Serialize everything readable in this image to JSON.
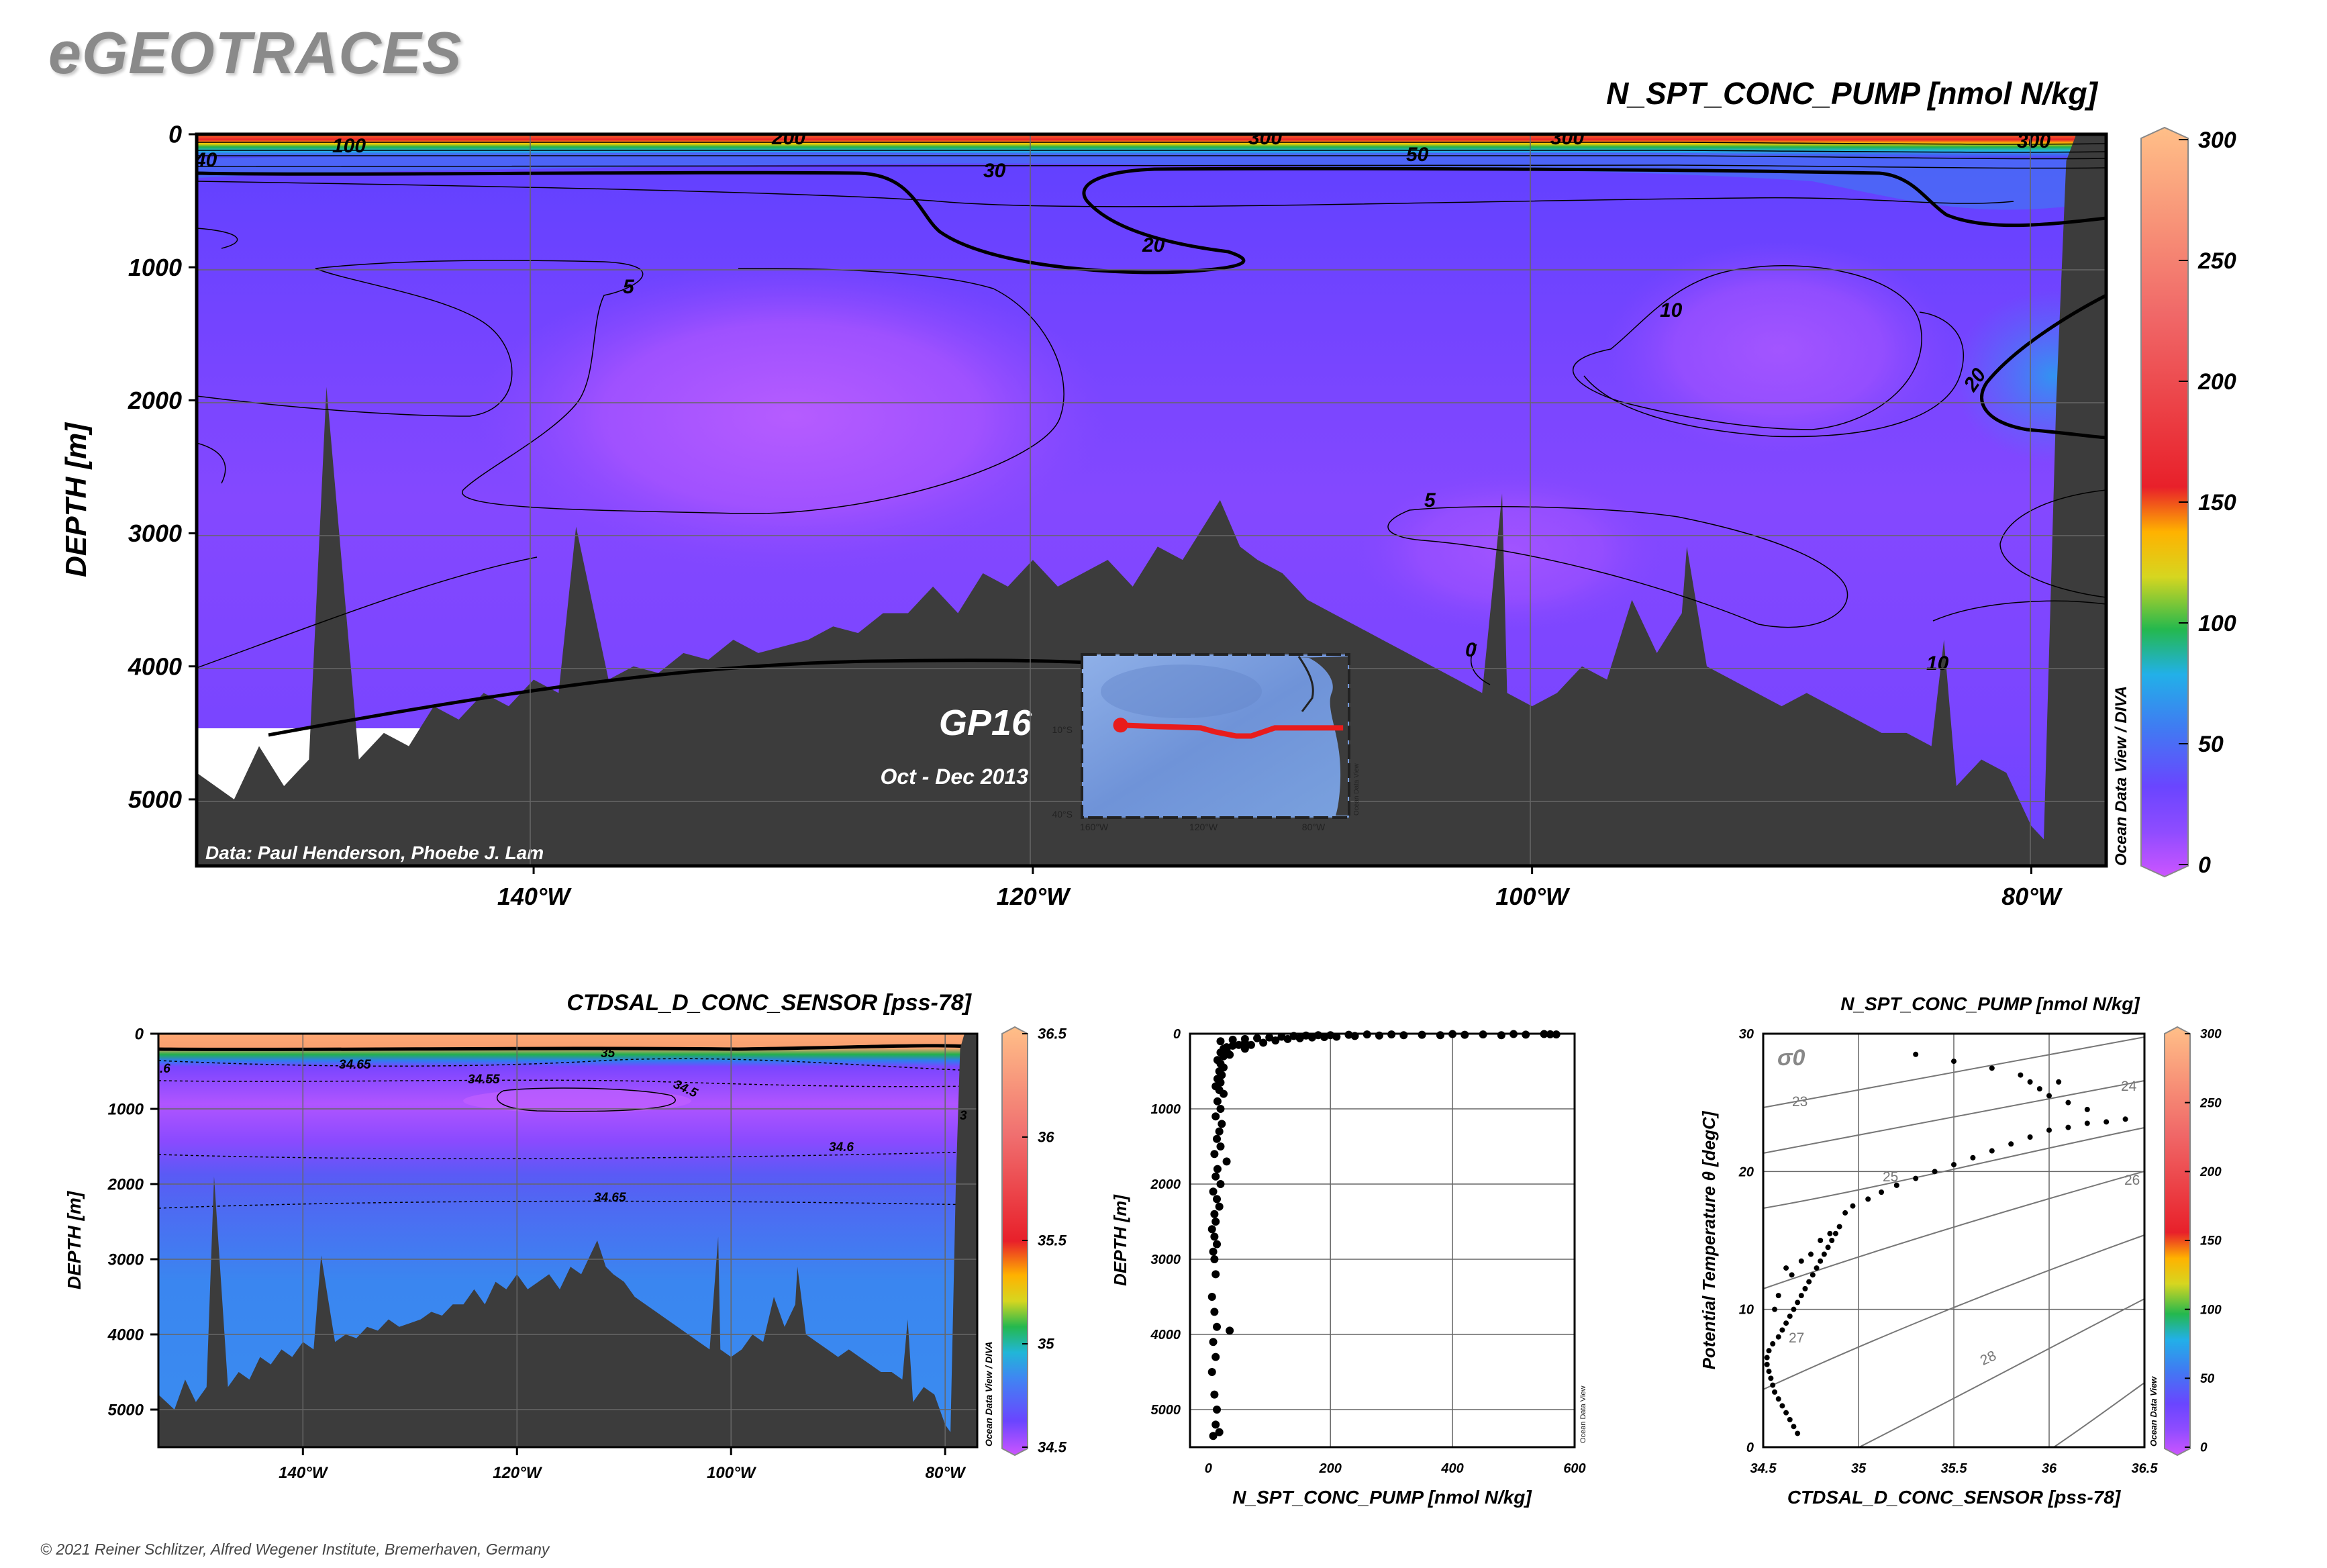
{
  "brand": "eGEOTRACES",
  "copyright": "© 2021 Reiner Schlitzer, Alfred Wegener Institute, Bremerhaven, Germany",
  "colors": {
    "land": "#3c3c3c",
    "scale_low": "#cc66ff",
    "scale_mid_blue": "#3a7df0",
    "scale_green": "#22b14c",
    "scale_yellow": "#ffd000",
    "scale_red": "#e8202a",
    "scale_high": "#ffb87a",
    "track": "#e81c1c"
  },
  "chart_data": [
    {
      "id": "main-section",
      "type": "heatmap",
      "title": "N_SPT_CONC_PUMP [nmol N/kg]",
      "ylabel": "DEPTH [m]",
      "xlabel": "",
      "xlim": [
        -153.5,
        -77
      ],
      "ylim": [
        5500,
        0
      ],
      "x_ticks": [
        {
          "value": -140,
          "label": "140°W"
        },
        {
          "value": -120,
          "label": "120°W"
        },
        {
          "value": -100,
          "label": "100°W"
        },
        {
          "value": -80,
          "label": "80°W"
        }
      ],
      "y_ticks": [
        0,
        1000,
        2000,
        3000,
        4000,
        5000
      ],
      "colorbar": {
        "min": 0,
        "max": 300,
        "ticks": [
          0,
          50,
          100,
          150,
          200,
          250,
          300
        ],
        "label": "Ocean Data View / DIVA"
      },
      "contour_labels": [
        "100",
        "200",
        "300",
        "300",
        "300",
        "40",
        "30",
        "50",
        "20",
        "5",
        "10",
        "20",
        "5",
        "0",
        "10"
      ],
      "credit": "Data: Paul Henderson, Phoebe J. Lam",
      "cruise": {
        "name": "GP16",
        "dates": "Oct - Dec 2013"
      },
      "inset_map": {
        "lat_labels": [
          "10°S",
          "40°S"
        ],
        "lon_labels": [
          "160°W",
          "120°W",
          "80°W"
        ],
        "side_label": "Ocean Data View",
        "track_lon": [
          -152,
          -140,
          -125,
          -120,
          -113,
          -108,
          -100,
          -85,
          -77
        ],
        "track_lat": [
          -11,
          -11.5,
          -12,
          -13.5,
          -15,
          -15,
          -12,
          -12,
          -12
        ]
      },
      "bathymetry": {
        "x": [
          -153.5,
          -152,
          -151,
          -150,
          -149,
          -148.3,
          -147,
          -146,
          -145,
          -144,
          -143,
          -142,
          -141,
          -140,
          -139,
          -138.3,
          -137,
          -136,
          -135,
          -134,
          -133,
          -132,
          -131,
          -130,
          -129,
          -128,
          -127,
          -126,
          -125,
          -124,
          -123,
          -122,
          -121,
          -120,
          -119,
          -118,
          -117,
          -116,
          -115,
          -114,
          -113,
          -112.5,
          -111.7,
          -111,
          -110,
          -109,
          -108,
          -107,
          -106,
          -105,
          -104,
          -103,
          -102,
          -101.2,
          -101,
          -100,
          -99,
          -98,
          -97,
          -96,
          -95,
          -94,
          -93.8,
          -93,
          -92,
          -91,
          -90,
          -89,
          -88,
          -87,
          -86,
          -85,
          -84,
          -83.5,
          -83,
          -82,
          -81,
          -80,
          -79.5,
          -79,
          -78.6,
          -78.2,
          -77
        ],
        "depth": [
          4800,
          5000,
          4600,
          4900,
          4700,
          1900,
          4700,
          4500,
          4600,
          4300,
          4400,
          4200,
          4300,
          4100,
          4200,
          2950,
          4100,
          4000,
          4050,
          3900,
          3950,
          3800,
          3900,
          3850,
          3800,
          3700,
          3750,
          3600,
          3600,
          3400,
          3600,
          3300,
          3400,
          3200,
          3400,
          3300,
          3200,
          3400,
          3100,
          3200,
          2900,
          2750,
          3100,
          3200,
          3300,
          3500,
          3600,
          3700,
          3800,
          3900,
          4000,
          4100,
          4200,
          2700,
          4200,
          4300,
          4200,
          4000,
          4100,
          3500,
          3900,
          3600,
          3100,
          4000,
          4100,
          4200,
          4300,
          4200,
          4300,
          4400,
          4500,
          4500,
          4600,
          3800,
          4900,
          4700,
          4800,
          5200,
          5300,
          2000,
          200,
          0,
          0
        ]
      }
    },
    {
      "id": "salinity-section",
      "type": "heatmap",
      "title": "CTDSAL_D_CONC_SENSOR [pss-78]",
      "ylabel": "DEPTH [m]",
      "xlabel": "",
      "xlim": [
        -153.5,
        -77
      ],
      "ylim": [
        5500,
        0
      ],
      "x_ticks": [
        {
          "value": -140,
          "label": "140°W"
        },
        {
          "value": -120,
          "label": "120°W"
        },
        {
          "value": -100,
          "label": "100°W"
        },
        {
          "value": -80,
          "label": "80°W"
        }
      ],
      "y_ticks": [
        0,
        1000,
        2000,
        3000,
        4000,
        5000
      ],
      "colorbar": {
        "min": 34.5,
        "max": 36.5,
        "ticks": [
          "34.5",
          "35",
          "35.5",
          "36",
          "36.5"
        ],
        "label": "Ocean Data View / DIVA"
      },
      "contour_labels": [
        "34.65",
        "35",
        "34.55",
        "34.5",
        "34.6",
        "34.65",
        ".6",
        "3"
      ]
    },
    {
      "id": "profile-scatter",
      "type": "scatter",
      "xlabel": "N_SPT_CONC_PUMP [nmol N/kg]",
      "ylabel": "DEPTH [m]",
      "xlim": [
        -30,
        600
      ],
      "ylim": [
        5500,
        0
      ],
      "x_ticks": [
        0,
        200,
        400,
        600
      ],
      "y_ticks": [
        0,
        1000,
        2000,
        3000,
        4000,
        5000
      ],
      "side_label": "Ocean Data View",
      "points": [
        [
          20,
          100
        ],
        [
          40,
          80
        ],
        [
          60,
          70
        ],
        [
          80,
          60
        ],
        [
          100,
          50
        ],
        [
          120,
          40
        ],
        [
          140,
          30
        ],
        [
          160,
          25
        ],
        [
          180,
          20
        ],
        [
          200,
          20
        ],
        [
          230,
          15
        ],
        [
          260,
          10
        ],
        [
          300,
          10
        ],
        [
          350,
          15
        ],
        [
          400,
          5
        ],
        [
          450,
          10
        ],
        [
          500,
          5
        ],
        [
          550,
          5
        ],
        [
          570,
          10
        ],
        [
          60,
          120
        ],
        [
          50,
          150
        ],
        [
          40,
          160
        ],
        [
          30,
          180
        ],
        [
          25,
          200
        ],
        [
          30,
          220
        ],
        [
          20,
          250
        ],
        [
          35,
          280
        ],
        [
          25,
          300
        ],
        [
          15,
          350
        ],
        [
          20,
          400
        ],
        [
          25,
          450
        ],
        [
          18,
          500
        ],
        [
          22,
          550
        ],
        [
          15,
          600
        ],
        [
          20,
          650
        ],
        [
          12,
          700
        ],
        [
          18,
          750
        ],
        [
          25,
          800
        ],
        [
          15,
          900
        ],
        [
          20,
          1000
        ],
        [
          12,
          1100
        ],
        [
          22,
          1200
        ],
        [
          18,
          1300
        ],
        [
          14,
          1400
        ],
        [
          20,
          1500
        ],
        [
          10,
          1600
        ],
        [
          30,
          1700
        ],
        [
          15,
          1800
        ],
        [
          12,
          1900
        ],
        [
          20,
          2000
        ],
        [
          8,
          2100
        ],
        [
          14,
          2200
        ],
        [
          18,
          2300
        ],
        [
          10,
          2400
        ],
        [
          12,
          2500
        ],
        [
          6,
          2600
        ],
        [
          10,
          2700
        ],
        [
          14,
          2800
        ],
        [
          8,
          2900
        ],
        [
          10,
          3000
        ],
        [
          12,
          3200
        ],
        [
          6,
          3500
        ],
        [
          10,
          3700
        ],
        [
          14,
          3900
        ],
        [
          35,
          3950
        ],
        [
          8,
          4100
        ],
        [
          12,
          4300
        ],
        [
          6,
          4500
        ],
        [
          10,
          4800
        ],
        [
          14,
          5000
        ],
        [
          12,
          5200
        ],
        [
          18,
          5300
        ],
        [
          8,
          5350
        ],
        [
          60,
          200
        ],
        [
          70,
          150
        ],
        [
          90,
          120
        ],
        [
          110,
          90
        ],
        [
          130,
          70
        ],
        [
          150,
          60
        ],
        [
          170,
          50
        ],
        [
          190,
          45
        ],
        [
          210,
          40
        ],
        [
          240,
          30
        ],
        [
          280,
          25
        ],
        [
          320,
          20
        ],
        [
          380,
          20
        ],
        [
          420,
          15
        ],
        [
          480,
          20
        ],
        [
          520,
          12
        ],
        [
          560,
          8
        ]
      ]
    },
    {
      "id": "ts-diagram",
      "type": "scatter",
      "title": "N_SPT_CONC_PUMP [nmol N/kg]",
      "xlabel": "CTDSAL_D_CONC_SENSOR [pss-78]",
      "ylabel": "Potential Temperature θ [degC]",
      "xlim": [
        34.5,
        36.5
      ],
      "ylim": [
        0,
        30
      ],
      "x_ticks": [
        "34.5",
        "35",
        "35.5",
        "36",
        "36.5"
      ],
      "y_ticks": [
        0,
        10,
        20,
        30
      ],
      "sigma_label": "σ0",
      "isopycnal_labels": [
        "23",
        "24",
        "25",
        "26",
        "27",
        "28"
      ],
      "colorbar": {
        "min": 0,
        "max": 300,
        "ticks": [
          0,
          50,
          100,
          150,
          200,
          250,
          300
        ],
        "label": "Ocean Data View"
      },
      "points": [
        [
          34.68,
          1.0
        ],
        [
          34.66,
          1.5
        ],
        [
          34.64,
          2.0
        ],
        [
          34.62,
          2.5
        ],
        [
          34.6,
          3.0
        ],
        [
          34.58,
          3.5
        ],
        [
          34.56,
          4.0
        ],
        [
          34.55,
          4.5
        ],
        [
          34.54,
          5.0
        ],
        [
          34.53,
          5.5
        ],
        [
          34.52,
          6.0
        ],
        [
          34.52,
          6.5
        ],
        [
          34.53,
          7.0
        ],
        [
          34.55,
          7.5
        ],
        [
          34.58,
          8.0
        ],
        [
          34.6,
          8.5
        ],
        [
          34.62,
          9.0
        ],
        [
          34.64,
          9.5
        ],
        [
          34.66,
          10.0
        ],
        [
          34.68,
          10.5
        ],
        [
          34.7,
          11.0
        ],
        [
          34.72,
          11.5
        ],
        [
          34.74,
          12.0
        ],
        [
          34.76,
          12.5
        ],
        [
          34.78,
          13.0
        ],
        [
          34.8,
          13.5
        ],
        [
          34.82,
          14.0
        ],
        [
          34.84,
          14.5
        ],
        [
          34.86,
          15.0
        ],
        [
          34.88,
          15.5
        ],
        [
          34.9,
          16.0
        ],
        [
          34.93,
          17.0
        ],
        [
          34.97,
          17.5
        ],
        [
          35.05,
          18.0
        ],
        [
          35.12,
          18.5
        ],
        [
          35.2,
          19.0
        ],
        [
          35.3,
          19.5
        ],
        [
          35.4,
          20.0
        ],
        [
          35.5,
          20.5
        ],
        [
          35.6,
          21.0
        ],
        [
          35.7,
          21.5
        ],
        [
          35.8,
          22.0
        ],
        [
          35.9,
          22.5
        ],
        [
          36.0,
          23.0
        ],
        [
          36.1,
          23.2
        ],
        [
          36.2,
          23.5
        ],
        [
          36.3,
          23.6
        ],
        [
          36.4,
          23.8
        ],
        [
          36.0,
          25.5
        ],
        [
          35.95,
          26.0
        ],
        [
          35.9,
          26.5
        ],
        [
          36.05,
          26.5
        ],
        [
          35.85,
          27.0
        ],
        [
          36.1,
          25.0
        ],
        [
          36.2,
          24.5
        ],
        [
          35.7,
          27.5
        ],
        [
          35.5,
          28.0
        ],
        [
          35.3,
          28.5
        ],
        [
          34.7,
          13.5
        ],
        [
          34.75,
          14.0
        ],
        [
          34.65,
          12.5
        ],
        [
          34.8,
          15.0
        ],
        [
          34.85,
          15.5
        ],
        [
          34.62,
          13.0
        ],
        [
          34.58,
          11.0
        ],
        [
          34.56,
          10.0
        ]
      ]
    }
  ]
}
